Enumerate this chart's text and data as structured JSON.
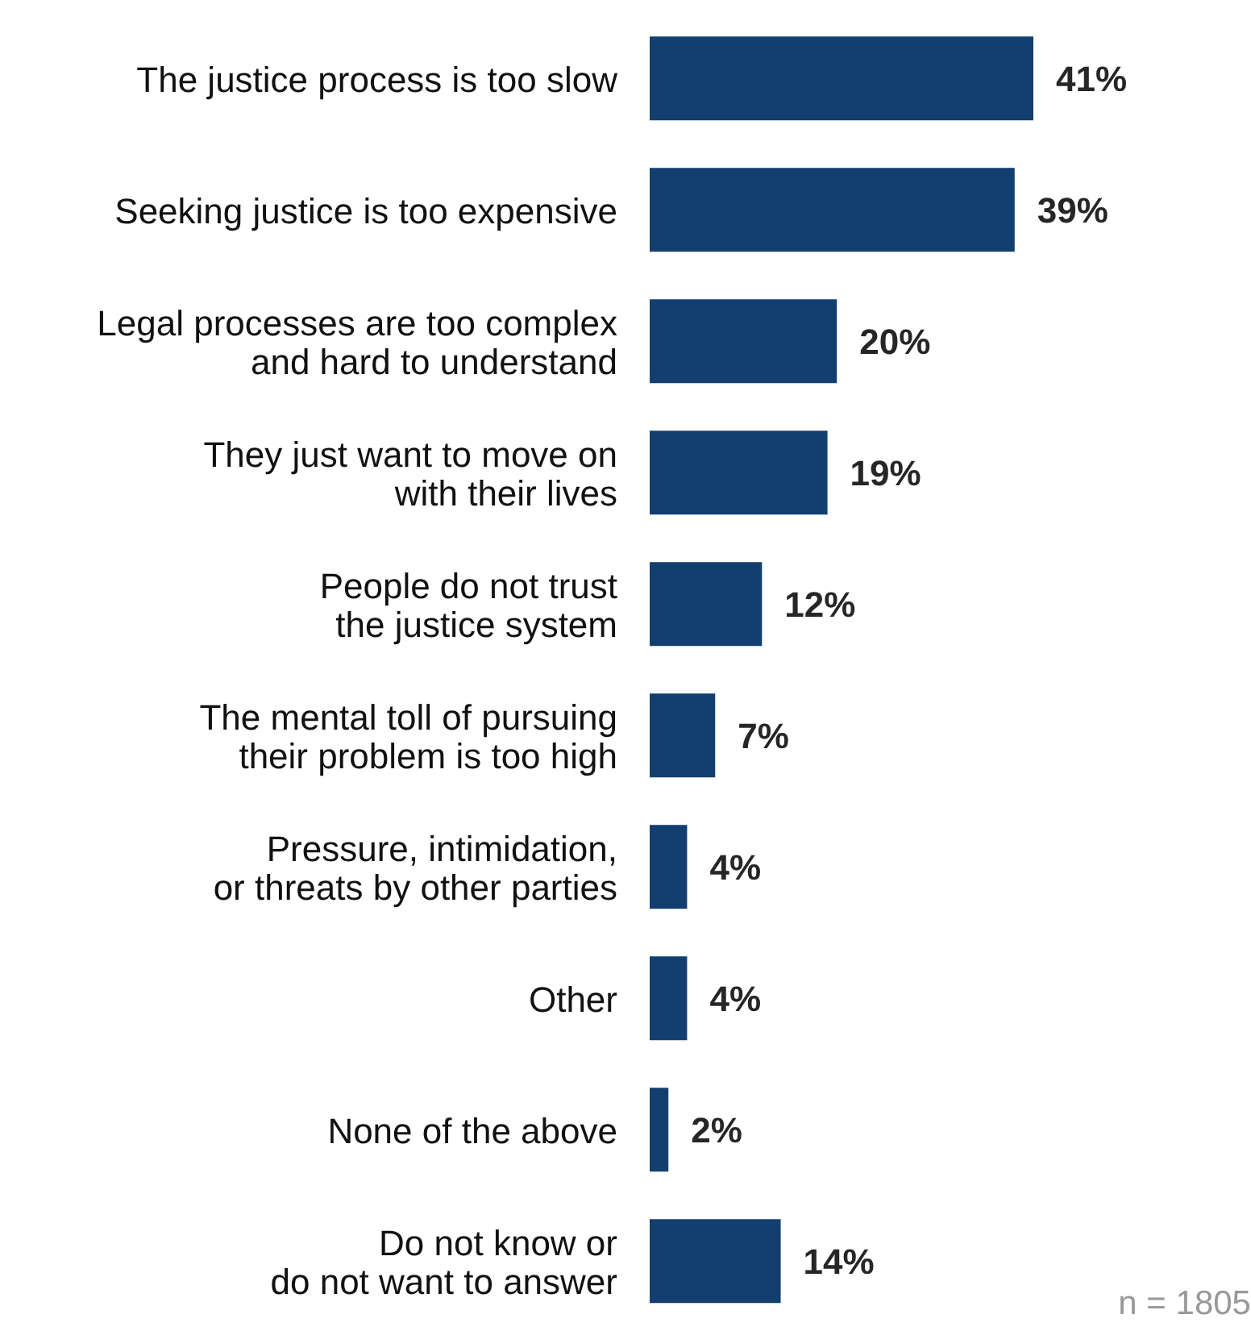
{
  "chart_data": {
    "type": "bar",
    "orientation": "horizontal",
    "categories": [
      "The justice process is too slow",
      "Seeking justice is too expensive",
      "Legal processes are too complex\nand hard to understand",
      "They just want to move on\nwith their lives",
      "People do not trust\nthe justice system",
      "The mental toll of pursuing\ntheir problem is too high",
      "Pressure, intimidation,\nor threats by other parties",
      "Other",
      "None of the above",
      "Do not know or\ndo not want to answer"
    ],
    "values": [
      41,
      39,
      20,
      19,
      12,
      7,
      4,
      4,
      2,
      14
    ],
    "value_labels": [
      "41%",
      "39%",
      "20%",
      "19%",
      "12%",
      "7%",
      "4%",
      "4%",
      "2%",
      "14%"
    ],
    "color": "#123f6f",
    "annotations": [
      "n = 1805"
    ]
  }
}
